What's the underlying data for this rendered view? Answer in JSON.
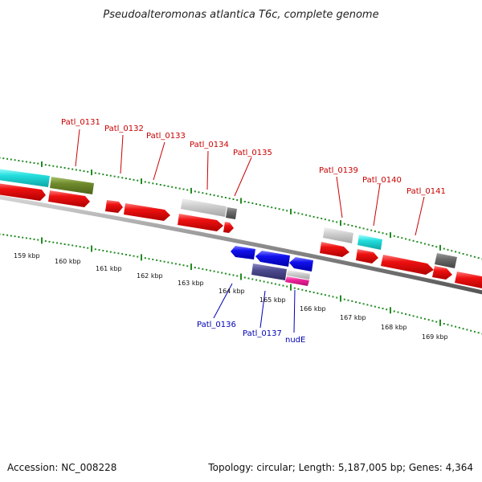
{
  "title": "Pseudoalteromonas atlantica T6c, complete genome",
  "footer": {
    "accession": "Accession: NC_008228",
    "summary": "Topology: circular; Length: 5,187,005 bp; Genes: 4,364"
  },
  "colors": {
    "forward": "#ee1111",
    "reverse": "#1111ee",
    "label_forward": "#c80000",
    "label_reverse": "#0000b4",
    "tick": "#228b22",
    "backbone": "#888888"
  },
  "ticks": [
    {
      "label": "159 kbp"
    },
    {
      "label": "160 kbp"
    },
    {
      "label": "161 kbp"
    },
    {
      "label": "162 kbp"
    },
    {
      "label": "163 kbp"
    },
    {
      "label": "164 kbp"
    },
    {
      "label": "165 kbp"
    },
    {
      "label": "166 kbp"
    },
    {
      "label": "167 kbp"
    },
    {
      "label": "168 kbp"
    },
    {
      "label": "169 kbp"
    }
  ],
  "gene_labels_forward": [
    {
      "name": "Patl_0131"
    },
    {
      "name": "Patl_0132"
    },
    {
      "name": "Patl_0133"
    },
    {
      "name": "Patl_0134"
    },
    {
      "name": "Patl_0135"
    },
    {
      "name": "Patl_0139"
    },
    {
      "name": "Patl_0140"
    },
    {
      "name": "Patl_0141"
    }
  ],
  "gene_labels_reverse": [
    {
      "name": "Patl_0136"
    },
    {
      "name": "Patl_0137"
    },
    {
      "name": "nudE"
    }
  ]
}
